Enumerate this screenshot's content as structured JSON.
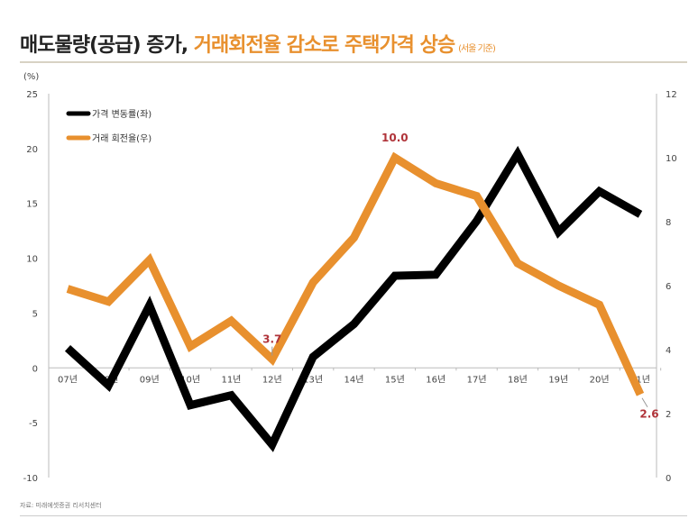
{
  "title": {
    "main": "매도물량(공급) 증가, ",
    "highlight": "거래회전율 감소로 주택가격 상승",
    "sub": "(서울 기준)"
  },
  "source": "자료: 미래에셋증권 리서치센터",
  "chart_data": {
    "type": "line",
    "unit_label": "(%)",
    "categories": [
      "07년",
      "08년",
      "09년",
      "10년",
      "11년",
      "12년",
      "13년",
      "14년",
      "15년",
      "16년",
      "17년",
      "18년",
      "19년",
      "20년",
      "21년"
    ],
    "left_axis": {
      "ylim": [
        -10,
        25
      ],
      "ticks": [
        -10,
        -5,
        0,
        5,
        10,
        15,
        20,
        25
      ]
    },
    "right_axis": {
      "ylim": [
        0,
        12
      ],
      "ticks": [
        0,
        2,
        4,
        6,
        8,
        10,
        12
      ]
    },
    "series": [
      {
        "name": "가격 변동률(좌)",
        "axis": "left",
        "color": "#000000",
        "values": [
          1.8,
          -1.6,
          5.7,
          -3.4,
          -2.5,
          -7.0,
          1.0,
          4.0,
          8.4,
          8.5,
          13.4,
          19.5,
          12.4,
          16.1,
          14.0
        ]
      },
      {
        "name": "거래 회전율(우)",
        "axis": "right",
        "color": "#e8902e",
        "values": [
          5.9,
          5.5,
          6.8,
          4.1,
          4.9,
          3.7,
          6.1,
          7.5,
          10.0,
          9.2,
          8.8,
          6.7,
          6.0,
          5.4,
          2.6
        ]
      }
    ],
    "annotations": [
      {
        "series": 1,
        "index": 5,
        "label": "3.7"
      },
      {
        "series": 1,
        "index": 8,
        "label": "10.0"
      },
      {
        "series": 1,
        "index": 14,
        "label": "2.6"
      }
    ],
    "legend": "top-left",
    "grid": false
  }
}
